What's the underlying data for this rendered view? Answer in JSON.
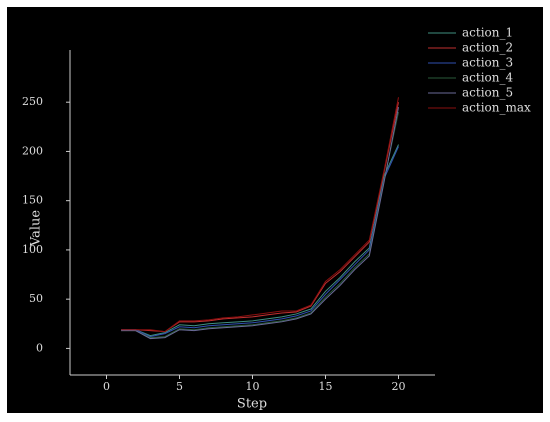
{
  "chart_data": {
    "type": "line",
    "x_label": "Step",
    "y_label": "Value",
    "x": [
      1,
      2,
      3,
      4,
      5,
      6,
      7,
      8,
      9,
      10,
      11,
      12,
      13,
      14,
      15,
      16,
      17,
      18,
      19,
      20
    ],
    "series": [
      {
        "name": "action_1",
        "color": "#3f8f7f",
        "values": [
          19,
          19,
          13,
          16,
          24,
          23,
          25,
          26,
          27,
          28,
          30,
          32,
          35,
          40,
          58,
          72,
          88,
          102,
          175,
          207
        ]
      },
      {
        "name": "action_2",
        "color": "#c03030",
        "values": [
          19,
          19,
          18,
          17,
          27,
          27,
          28,
          30,
          31,
          32,
          34,
          36,
          37,
          43,
          66,
          78,
          93,
          108,
          178,
          250
        ]
      },
      {
        "name": "action_3",
        "color": "#3050b0",
        "values": [
          19,
          19,
          12,
          15,
          22,
          21,
          23,
          24,
          25,
          26,
          28,
          30,
          33,
          38,
          55,
          70,
          85,
          100,
          172,
          205
        ]
      },
      {
        "name": "action_4",
        "color": "#2a5a3a",
        "values": [
          18,
          18,
          11,
          12,
          20,
          19,
          21,
          22,
          23,
          24,
          26,
          28,
          31,
          36,
          52,
          66,
          82,
          96,
          170,
          240
        ]
      },
      {
        "name": "action_5",
        "color": "#6a6a98",
        "values": [
          18,
          18,
          10,
          11,
          19,
          18,
          20,
          21,
          22,
          23,
          25,
          27,
          30,
          35,
          50,
          64,
          80,
          94,
          168,
          245
        ]
      },
      {
        "name": "action_max",
        "color": "#8a1010",
        "values": [
          19,
          19,
          19,
          17,
          28,
          28,
          29,
          31,
          32,
          34,
          36,
          38,
          38,
          44,
          68,
          80,
          95,
          110,
          180,
          255
        ]
      }
    ],
    "xlim": [
      -2.5,
      22.5
    ],
    "xticks": [
      0,
      5,
      10,
      15,
      20
    ],
    "ylim": [
      -27,
      303
    ],
    "yticks": [
      0,
      50,
      100,
      150,
      200,
      250
    ]
  }
}
